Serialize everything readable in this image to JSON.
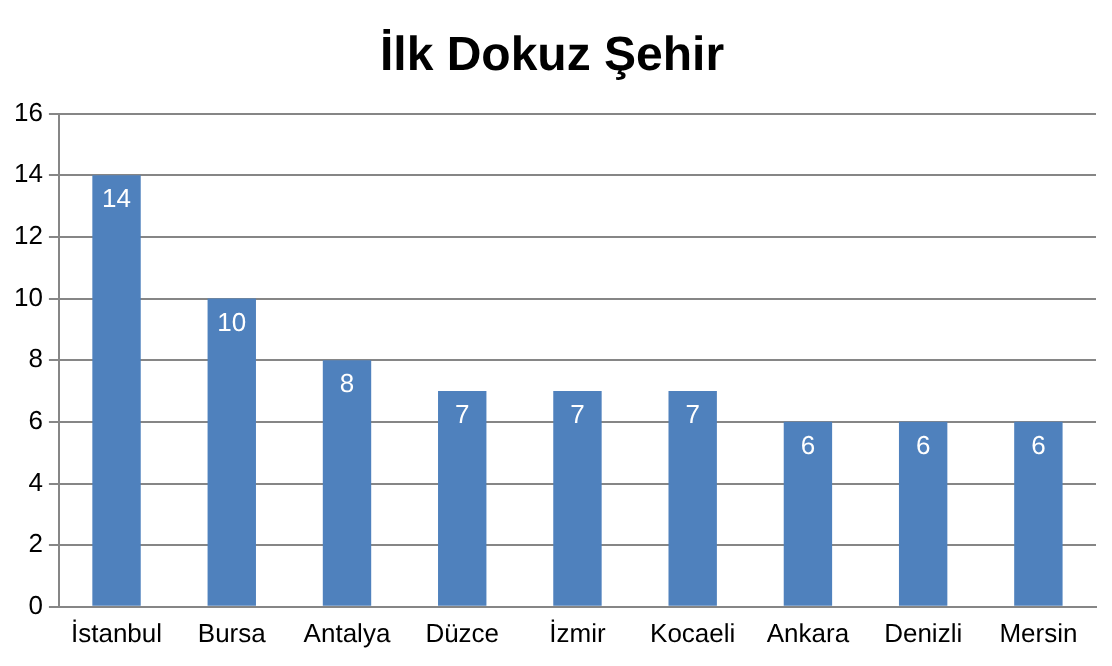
{
  "chart_data": {
    "type": "bar",
    "title": "İlk Dokuz Şehir",
    "categories": [
      "İstanbul",
      "Bursa",
      "Antalya",
      "Düzce",
      "İzmir",
      "Kocaeli",
      "Ankara",
      "Denizli",
      "Mersin"
    ],
    "values": [
      14,
      10,
      8,
      7,
      7,
      7,
      6,
      6,
      6
    ],
    "color": "#4f81bd",
    "ylim": [
      0,
      16
    ],
    "yticks": [
      0,
      2,
      4,
      6,
      8,
      10,
      12,
      14,
      16
    ],
    "grid": "y",
    "data_labels": true
  }
}
